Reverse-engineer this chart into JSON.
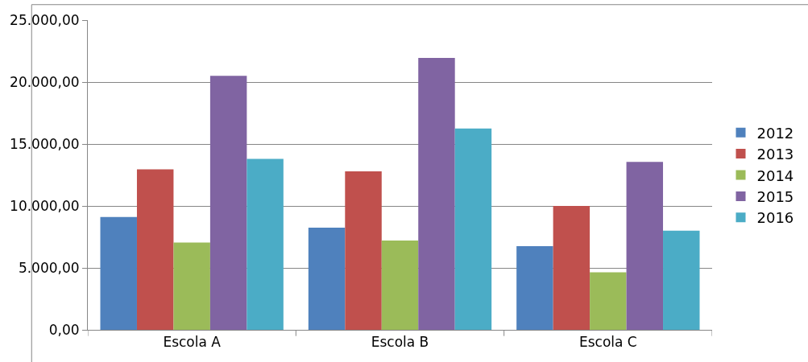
{
  "chart_data": {
    "type": "bar",
    "categories": [
      "Escola A",
      "Escola B",
      "Escola C"
    ],
    "series": [
      {
        "name": "2012",
        "color": "#4f81bd",
        "values": [
          9100,
          8250,
          6750
        ]
      },
      {
        "name": "2013",
        "color": "#c0504d",
        "values": [
          12950,
          12800,
          10000
        ]
      },
      {
        "name": "2014",
        "color": "#9bbb59",
        "values": [
          7050,
          7200,
          4650
        ]
      },
      {
        "name": "2015",
        "color": "#8064a2",
        "values": [
          20500,
          21950,
          13550
        ]
      },
      {
        "name": "2016",
        "color": "#4bacc6",
        "values": [
          13800,
          16250,
          8000
        ]
      }
    ],
    "ylim": [
      0,
      25000
    ],
    "yticks": [
      {
        "value": 0,
        "label": "0,00"
      },
      {
        "value": 5000,
        "label": "5.000,00"
      },
      {
        "value": 10000,
        "label": "10.000,00"
      },
      {
        "value": 15000,
        "label": "15.000,00"
      },
      {
        "value": 20000,
        "label": "20.000,00"
      },
      {
        "value": 25000,
        "label": "25.000,00"
      }
    ],
    "grid": "y",
    "legend": "right"
  }
}
